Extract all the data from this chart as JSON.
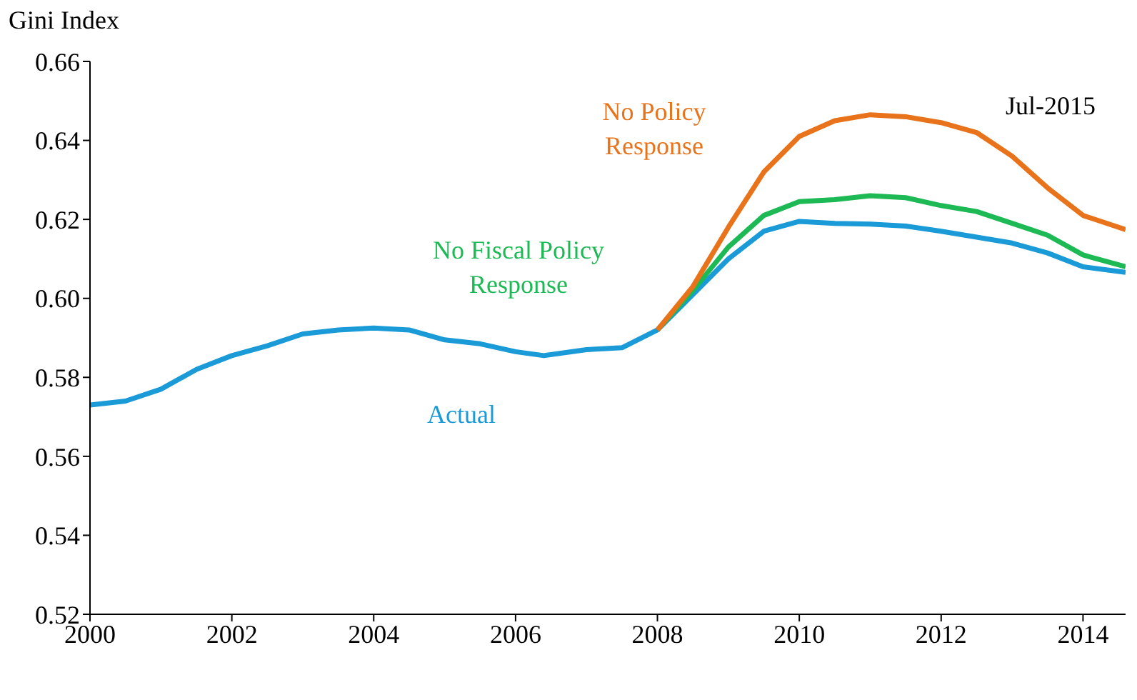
{
  "chart_data": {
    "type": "line",
    "ylabel": "Gini Index",
    "xlim": [
      2000,
      2014.6
    ],
    "xticks": [
      2000,
      2002,
      2004,
      2006,
      2008,
      2010,
      2012,
      2014
    ],
    "ylim": [
      0.52,
      0.66
    ],
    "yticks": [
      0.52,
      0.54,
      0.56,
      0.58,
      {
        "value": 0.6,
        "label": "0.60"
      },
      0.62,
      0.64,
      0.66
    ],
    "grid": false,
    "marker": "none",
    "annotations": [
      "Jul-2015"
    ],
    "series": [
      {
        "name": "Actual",
        "color": "#1a9ad6",
        "x": [
          2000,
          2000.5,
          2001,
          2001.5,
          2002,
          2002.5,
          2003,
          2003.5,
          2004,
          2004.5,
          2005,
          2005.5,
          2006,
          2006.4,
          2007,
          2007.5,
          2008,
          2008.5,
          2009,
          2009.5,
          2010,
          2010.5,
          2011,
          2011.5,
          2012,
          2012.5,
          2013,
          2013.5,
          2014,
          2014.6
        ],
        "values": [
          0.573,
          0.574,
          0.577,
          0.582,
          0.5855,
          0.588,
          0.591,
          0.592,
          0.5925,
          0.592,
          0.5895,
          0.5885,
          0.5865,
          0.5855,
          0.587,
          0.5875,
          0.592,
          0.601,
          0.61,
          0.617,
          0.6195,
          0.619,
          0.6188,
          0.6183,
          0.617,
          0.6155,
          0.614,
          0.6115,
          0.608,
          0.6066
        ]
      },
      {
        "name": "No Fiscal Policy Response",
        "color": "#1db954",
        "x": [
          2008,
          2008.5,
          2009,
          2009.5,
          2010,
          2010.5,
          2011,
          2011.5,
          2012,
          2012.5,
          2013,
          2013.5,
          2014,
          2014.6
        ],
        "values": [
          0.592,
          0.602,
          0.613,
          0.621,
          0.6245,
          0.625,
          0.626,
          0.6255,
          0.6235,
          0.622,
          0.619,
          0.616,
          0.611,
          0.608
        ]
      },
      {
        "name": "No Policy Response",
        "color": "#e8731a",
        "x": [
          2008,
          2008.5,
          2009,
          2009.5,
          2010,
          2010.5,
          2011,
          2011.5,
          2012,
          2012.5,
          2013,
          2013.5,
          2014,
          2014.6
        ],
        "values": [
          0.592,
          0.603,
          0.618,
          0.632,
          0.641,
          0.645,
          0.6465,
          0.646,
          0.6445,
          0.642,
          0.636,
          0.628,
          0.621,
          0.6174
        ]
      }
    ]
  }
}
